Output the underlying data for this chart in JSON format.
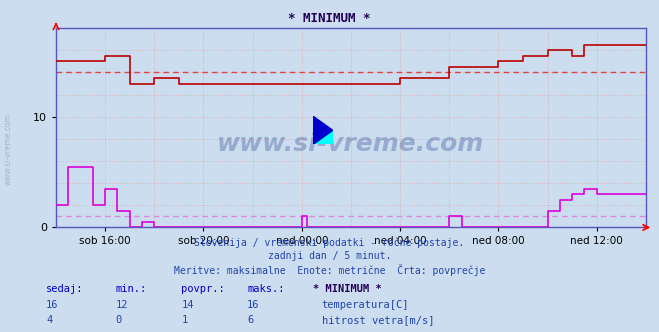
{
  "title": "* MINIMUM *",
  "bg_color": "#ccddef",
  "plot_bg_color": "#ccddef",
  "grid_color_v": "#ddaaaa",
  "grid_color_h": "#ddaaaa",
  "temp_color": "#bb0000",
  "wind_color": "#dd00dd",
  "avg_temp_color": "#dd4444",
  "avg_wind_color": "#dd88dd",
  "axis_color": "#5555bb",
  "xlim": [
    0,
    24
  ],
  "ylim": [
    0,
    18
  ],
  "ytick_vals": [
    0,
    10
  ],
  "x_tick_positions": [
    2,
    6,
    10,
    14,
    18,
    22
  ],
  "x_tick_labels": [
    "sob 16:00",
    "sob 20:00",
    "ned 00:00",
    "ned 04:00",
    "ned 08:00",
    "ned 12:00"
  ],
  "footnote1": "Slovenija / vremenski podatki - ročne postaje.",
  "footnote2": "zadnji dan / 5 minut.",
  "footnote3": "Meritve: maksimalne  Enote: metrične  Črta: povprečje",
  "table_header": [
    "sedaj:",
    "min.:",
    "povpr.:",
    "maks.:",
    "* MINIMUM *"
  ],
  "table_row1_nums": [
    "16",
    "12",
    "14",
    "16"
  ],
  "table_row1_label": "temperatura[C]",
  "table_row2_nums": [
    "4",
    "0",
    "1",
    "6"
  ],
  "table_row2_label": "hitrost vetra[m/s]",
  "avg_temp": 14,
  "avg_wind": 1,
  "watermark": "www.si-vreme.com",
  "sidebar_text": "www.si-vreme.com",
  "temp_data_t": [
    0,
    2,
    2,
    3,
    3,
    4,
    4,
    5,
    5,
    6,
    6,
    7,
    7,
    8,
    8,
    14,
    14,
    16,
    16,
    18,
    18,
    19,
    19,
    20,
    20,
    21,
    21,
    21.5,
    21.5,
    24
  ],
  "temp_data_v": [
    15,
    15,
    15.5,
    15.5,
    13,
    13,
    13.5,
    13.5,
    13,
    13,
    13,
    13,
    13,
    13,
    13,
    13,
    13.5,
    13.5,
    14.5,
    14.5,
    15,
    15,
    15.5,
    15.5,
    16,
    16,
    15.5,
    15.5,
    16.5,
    16.5
  ],
  "wind_data_t": [
    0,
    0.5,
    0.5,
    1.5,
    1.5,
    2,
    2,
    2.5,
    2.5,
    3,
    3,
    3.5,
    3.5,
    4,
    4,
    4.5,
    4.5,
    10,
    10,
    10.2,
    10.2,
    16,
    16,
    16.5,
    16.5,
    20,
    20,
    20.5,
    20.5,
    21,
    21,
    21.5,
    21.5,
    22,
    22,
    24
  ],
  "wind_data_v": [
    2,
    2,
    5.5,
    5.5,
    2,
    2,
    3.5,
    3.5,
    1.5,
    1.5,
    0,
    0,
    0.5,
    0.5,
    0,
    0,
    0,
    0,
    1,
    1,
    0,
    0,
    1,
    1,
    0,
    0,
    1.5,
    1.5,
    2.5,
    2.5,
    3,
    3,
    3.5,
    3.5,
    3,
    3
  ]
}
